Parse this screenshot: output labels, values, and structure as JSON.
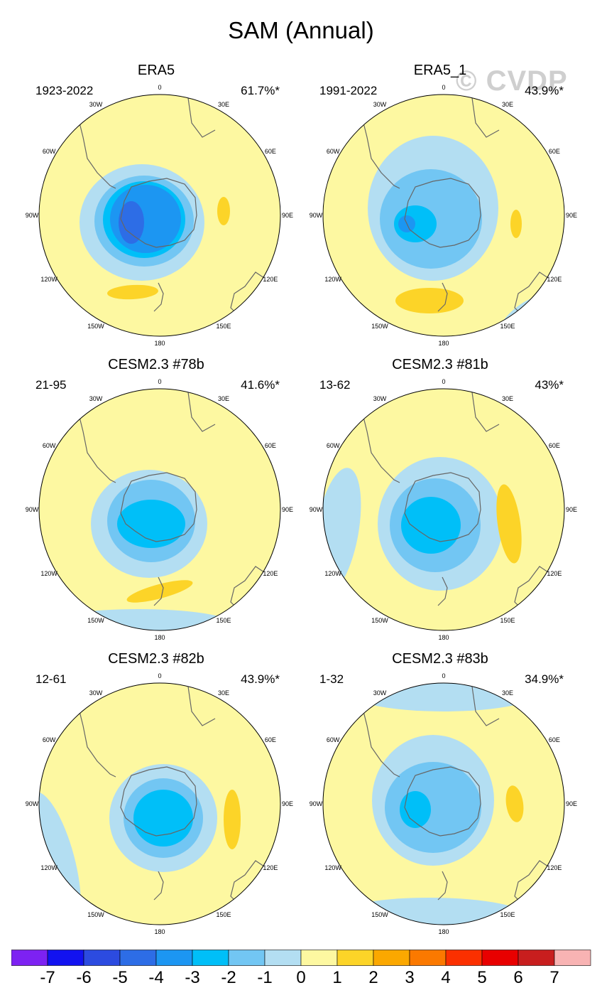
{
  "title": "SAM (Annual)",
  "watermark": "© CVDP",
  "colors": {
    "ocean_base": "#fdf8a1",
    "coast": "#666666",
    "levels": {
      "m4": "#2d6de6",
      "m3": "#1c96f2",
      "m2": "#00bff8",
      "m1": "#72c6f3",
      "m0": "#b3def2",
      "p0": "#fdf8a1",
      "p1": "#fcd428"
    }
  },
  "panels": [
    {
      "title": "ERA5",
      "years": "1923-2022",
      "variance": "61.7%*"
    },
    {
      "title": "ERA5_1",
      "years": "1991-2022",
      "variance": "43.9%*"
    },
    {
      "title": "CESM2.3 #78b",
      "years": "21-95",
      "variance": "41.6%*"
    },
    {
      "title": "CESM2.3 #81b",
      "years": "13-62",
      "variance": "43%*"
    },
    {
      "title": "CESM2.3 #82b",
      "years": "12-61",
      "variance": "43.9%*"
    },
    {
      "title": "CESM2.3 #83b",
      "years": "1-32",
      "variance": "34.9%*"
    }
  ],
  "longitude_labels": [
    "0",
    "30E",
    "60E",
    "90E",
    "120E",
    "150E",
    "180",
    "150W",
    "120W",
    "90W",
    "60W",
    "30W"
  ],
  "colorbar": {
    "colors": [
      "#7d22f2",
      "#1212f0",
      "#2c4be0",
      "#2d6de6",
      "#1c96f2",
      "#00bff8",
      "#72c6f3",
      "#b3def2",
      "#fdf8a1",
      "#fcd428",
      "#fba800",
      "#fb7900",
      "#fb3000",
      "#e80000",
      "#c81e1e",
      "#f8b3b3"
    ],
    "labels": [
      "-7",
      "-6",
      "-5",
      "-4",
      "-3",
      "-2",
      "-1",
      "0",
      "1",
      "2",
      "3",
      "4",
      "5",
      "6",
      "7"
    ]
  }
}
